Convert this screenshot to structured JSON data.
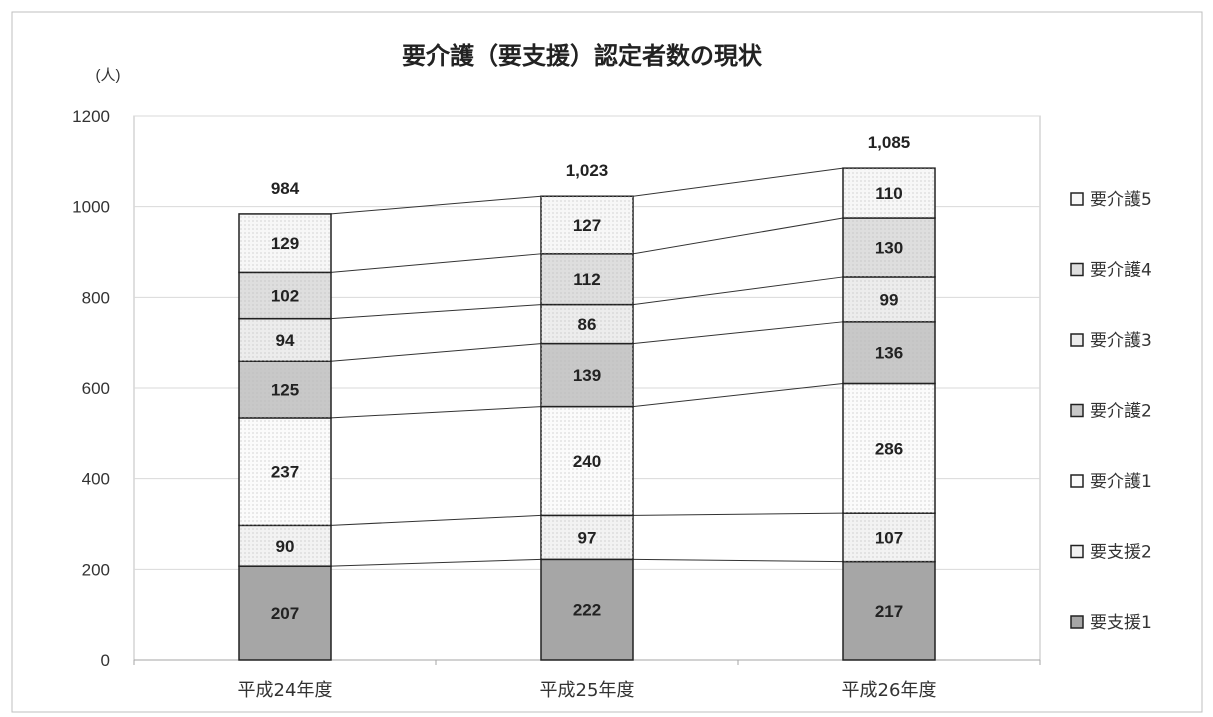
{
  "chart_data": {
    "type": "bar",
    "stacked": true,
    "title": "要介護（要支援）認定者数の現状",
    "ylabel": "(人)",
    "xlabel": "",
    "ylim": [
      0,
      1200
    ],
    "yticks": [
      0,
      200,
      400,
      600,
      800,
      1000,
      1200
    ],
    "categories": [
      "平成24年度",
      "平成25年度",
      "平成26年度"
    ],
    "series": [
      {
        "name": "要支援1",
        "values": [
          207,
          222,
          217
        ],
        "color": "#a6a6a6"
      },
      {
        "name": "要支援2",
        "values": [
          90,
          97,
          107
        ],
        "color": "#f2f2f2"
      },
      {
        "name": "要介護1",
        "values": [
          237,
          240,
          286
        ],
        "color": "#fbfbfb"
      },
      {
        "name": "要介護2",
        "values": [
          125,
          139,
          136
        ],
        "color": "#c8c8c8"
      },
      {
        "name": "要介護3",
        "values": [
          94,
          86,
          99
        ],
        "color": "#ececec"
      },
      {
        "name": "要介護4",
        "values": [
          102,
          112,
          130
        ],
        "color": "#dedede"
      },
      {
        "name": "要介護5",
        "values": [
          129,
          127,
          110
        ],
        "color": "#f7f7f7"
      }
    ],
    "totals": [
      "984",
      "1,023",
      "1,085"
    ],
    "grid": true,
    "legend_position": "right",
    "series_lines": true
  }
}
